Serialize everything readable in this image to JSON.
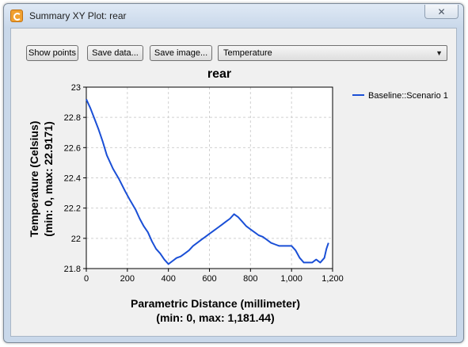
{
  "window": {
    "title": "Summary XY Plot: rear",
    "close_glyph": "✕"
  },
  "toolbar": {
    "show_points_label": "Show points",
    "save_data_label": "Save data...",
    "save_image_label": "Save image...",
    "variable_select_value": "Temperature",
    "dropdown_glyph": "▼"
  },
  "chart_data": {
    "type": "line",
    "title": "rear",
    "xlabel": "Parametric Distance (millimeter)",
    "xlabel_sub": "(min: 0, max: 1,181.44)",
    "ylabel": "Temperature (Celsius)",
    "ylabel_sub": "(min: 0, max: 22.9171)",
    "xlim": [
      0,
      1200
    ],
    "ylim": [
      21.8,
      23
    ],
    "xticks": [
      0,
      200,
      400,
      600,
      800,
      1000,
      1200
    ],
    "xtick_labels": [
      "0",
      "200",
      "400",
      "600",
      "800",
      "1,000",
      "1,200"
    ],
    "yticks": [
      21.8,
      22,
      22.2,
      22.4,
      22.6,
      22.8,
      23
    ],
    "ytick_labels": [
      "21.8",
      "22",
      "22.2",
      "22.4",
      "22.6",
      "22.8",
      "23"
    ],
    "grid": true,
    "legend_position": "right",
    "series": [
      {
        "name": "Baseline::Scenario 1",
        "color": "#1a4fd6",
        "x": [
          0,
          20,
          40,
          60,
          80,
          100,
          130,
          160,
          190,
          210,
          240,
          260,
          280,
          300,
          320,
          340,
          360,
          380,
          400,
          420,
          440,
          460,
          480,
          500,
          520,
          540,
          560,
          580,
          600,
          620,
          640,
          660,
          680,
          700,
          720,
          740,
          760,
          780,
          800,
          820,
          840,
          860,
          880,
          900,
          920,
          940,
          960,
          980,
          1000,
          1020,
          1040,
          1060,
          1080,
          1100,
          1120,
          1140,
          1160,
          1170,
          1180
        ],
        "y": [
          22.92,
          22.86,
          22.79,
          22.72,
          22.64,
          22.55,
          22.46,
          22.39,
          22.31,
          22.26,
          22.19,
          22.13,
          22.08,
          22.04,
          21.98,
          21.93,
          21.9,
          21.86,
          21.83,
          21.85,
          21.87,
          21.88,
          21.9,
          21.92,
          21.95,
          21.97,
          21.99,
          22.01,
          22.03,
          22.05,
          22.07,
          22.09,
          22.11,
          22.13,
          22.16,
          22.14,
          22.11,
          22.08,
          22.06,
          22.04,
          22.02,
          22.01,
          21.99,
          21.97,
          21.96,
          21.95,
          21.95,
          21.95,
          21.95,
          21.92,
          21.87,
          21.84,
          21.84,
          21.84,
          21.86,
          21.84,
          21.87,
          21.93,
          21.97
        ]
      }
    ]
  }
}
